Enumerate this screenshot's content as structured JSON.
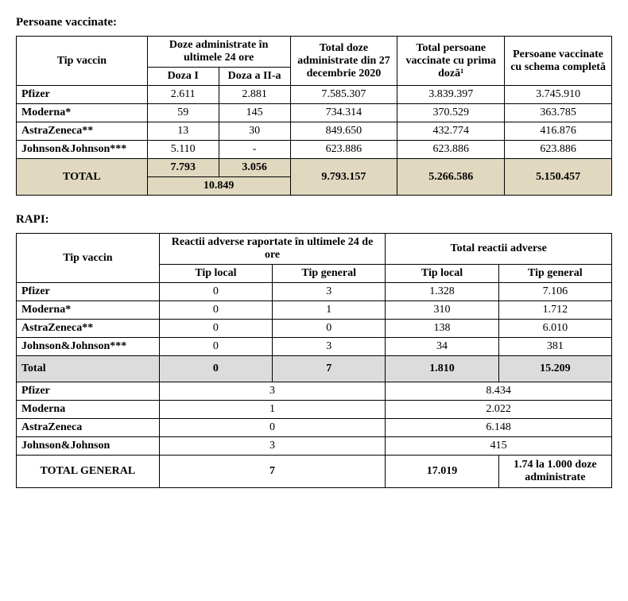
{
  "section1_title": "Persoane vaccinate:",
  "section2_title": "RAPI:",
  "t1": {
    "h_tip": "Tip vaccin",
    "h_24h": "Doze administrate în ultimele 24 ore",
    "h_d1": "Doza I",
    "h_d2": "Doza a II-a",
    "h_total_doze": "Total doze administrate din 27 decembrie 2020",
    "h_prima": "Total persoane vaccinate cu prima doză¹",
    "h_schema": "Persoane vaccinate cu schema completă",
    "rows": [
      {
        "name": "Pfizer",
        "d1": "2.611",
        "d2": "2.881",
        "tot": "7.585.307",
        "p1": "3.839.397",
        "p2": "3.745.910"
      },
      {
        "name": "Moderna*",
        "d1": "59",
        "d2": "145",
        "tot": "734.314",
        "p1": "370.529",
        "p2": "363.785"
      },
      {
        "name": "AstraZeneca**",
        "d1": "13",
        "d2": "30",
        "tot": "849.650",
        "p1": "432.774",
        "p2": "416.876"
      },
      {
        "name": "Johnson&Johnson***",
        "d1": "5.110",
        "d2": "-",
        "tot": "623.886",
        "p1": "623.886",
        "p2": "623.886"
      }
    ],
    "tot_label": "TOTAL",
    "tot_d1": "7.793",
    "tot_d2": "3.056",
    "tot_d12": "10.849",
    "tot_doze": "9.793.157",
    "tot_p1": "5.266.586",
    "tot_p2": "5.150.457"
  },
  "t2": {
    "h_tip": "Tip vaccin",
    "h_24h": "Reactii adverse raportate în ultimele 24 de ore",
    "h_tot": "Total reactii adverse",
    "h_local": "Tip local",
    "h_general": "Tip general",
    "rows": [
      {
        "name": "Pfizer",
        "l24": "0",
        "g24": "3",
        "ltot": "1.328",
        "gtot": "7.106"
      },
      {
        "name": "Moderna*",
        "l24": "0",
        "g24": "1",
        "ltot": "310",
        "gtot": "1.712"
      },
      {
        "name": "AstraZeneca**",
        "l24": "0",
        "g24": "0",
        "ltot": "138",
        "gtot": "6.010"
      },
      {
        "name": "Johnson&Johnson***",
        "l24": "0",
        "g24": "3",
        "ltot": "34",
        "gtot": "381"
      }
    ],
    "sub_label": "Total",
    "sub_l24": "0",
    "sub_g24": "7",
    "sub_ltot": "1.810",
    "sub_gtot": "15.209",
    "rows2": [
      {
        "name": "Pfizer",
        "g": "3",
        "t": "8.434"
      },
      {
        "name": "Moderna",
        "g": "1",
        "t": "2.022"
      },
      {
        "name": "AstraZeneca",
        "g": "0",
        "t": "6.148"
      },
      {
        "name": "Johnson&Johnson",
        "g": "3",
        "t": "415"
      }
    ],
    "gen_label": "TOTAL GENERAL",
    "gen_g": "7",
    "gen_t": "17.019",
    "gen_rate": "1.74 la 1.000 doze administrate"
  }
}
